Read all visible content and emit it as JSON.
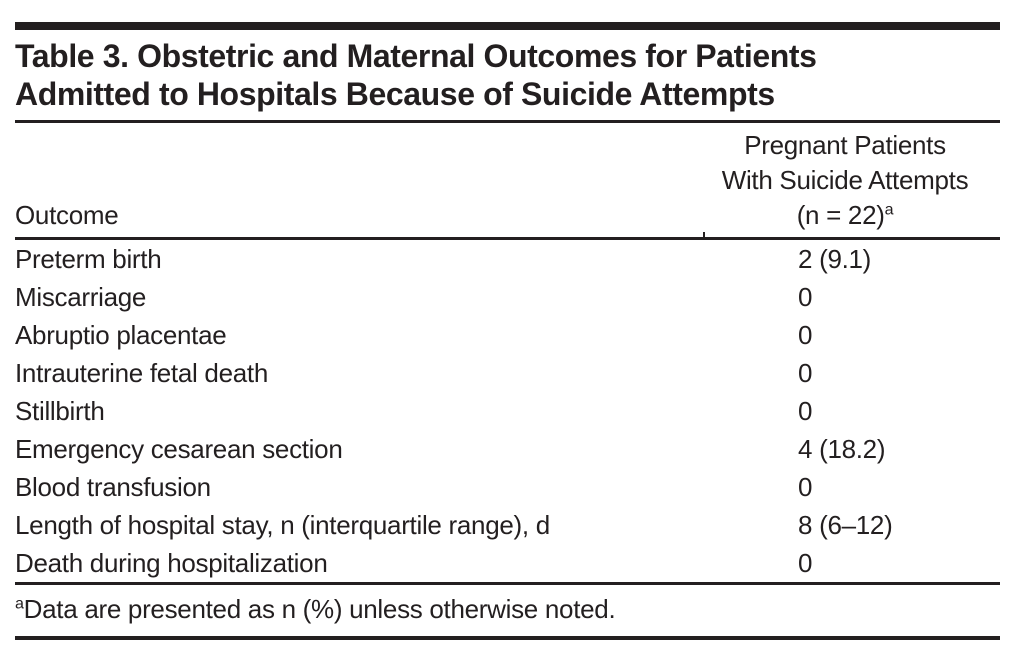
{
  "title": {
    "line1": "Table 3. Obstetric and Maternal Outcomes for Patients",
    "line2": "Admitted to Hospitals Because of Suicide Attempts"
  },
  "table": {
    "header": {
      "outcome_label": "Outcome",
      "value_line1": "Pregnant Patients",
      "value_line2": "With Suicide Attempts",
      "value_line3": "(n = 22)",
      "value_footnote_marker": "a"
    },
    "rows": [
      {
        "outcome": "Preterm birth",
        "value": "2 (9.1)"
      },
      {
        "outcome": "Miscarriage",
        "value": "0"
      },
      {
        "outcome": "Abruptio placentae",
        "value": "0"
      },
      {
        "outcome": "Intrauterine fetal death",
        "value": "0"
      },
      {
        "outcome": "Stillbirth",
        "value": "0"
      },
      {
        "outcome": "Emergency cesarean section",
        "value": "4 (18.2)"
      },
      {
        "outcome": "Blood transfusion",
        "value": "0"
      },
      {
        "outcome": "Length of hospital stay, n (interquartile range), d",
        "value": "8 (6–12)"
      },
      {
        "outcome": "Death during hospitalization",
        "value": "0"
      }
    ]
  },
  "footnote": {
    "marker": "a",
    "text": "Data are presented as n (%) unless otherwise noted."
  },
  "colors": {
    "text": "#231f20",
    "rule": "#231f20",
    "background": "#ffffff"
  }
}
